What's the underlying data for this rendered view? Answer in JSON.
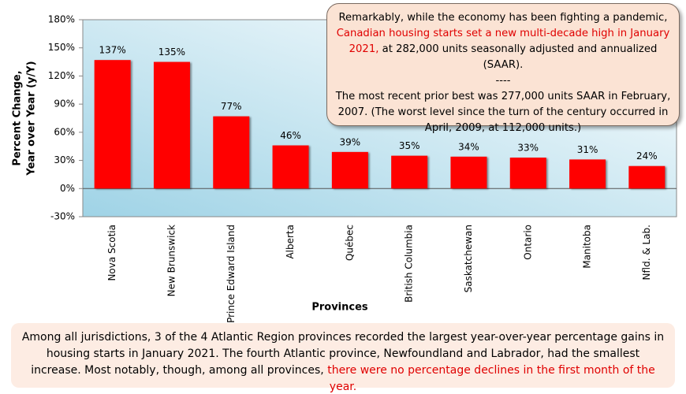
{
  "chart_data": {
    "type": "bar",
    "x_label": "Provinces",
    "y_label": [
      "Percent Change,",
      "Year over Year (y/Y)"
    ],
    "categories": [
      "Nova Scotia",
      "New Brunswick",
      "Prince Edward Island",
      "Alberta",
      "Québec",
      "British Columbia",
      "Saskatchewan",
      "Ontario",
      "Manitoba",
      "Nfld. & Lab."
    ],
    "values": [
      137,
      135,
      77,
      46,
      39,
      35,
      34,
      33,
      31,
      24
    ],
    "value_labels": [
      "137%",
      "135%",
      "77%",
      "46%",
      "39%",
      "35%",
      "34%",
      "33%",
      "31%",
      "24%"
    ],
    "color": "#ff0000",
    "ylim": [
      -30,
      180
    ],
    "yticks": [
      {
        "value": -30,
        "label": "-30%"
      },
      {
        "value": 0,
        "label": "0%"
      },
      {
        "value": 30,
        "label": "30%"
      },
      {
        "value": 60,
        "label": "60%"
      },
      {
        "value": 90,
        "label": "90%"
      },
      {
        "value": 120,
        "label": "120%"
      },
      {
        "value": 150,
        "label": "150%"
      },
      {
        "value": 180,
        "label": "180%"
      }
    ],
    "grid": false,
    "annotation": [
      [
        {
          "text": "Remarkably, while the economy has been fighting a pandemic,",
          "color": "#000000"
        },
        {
          "text": "Canadian housing starts set a new multi-decade high in January 2021,",
          "color": "#e00000"
        },
        {
          "text": "at 282,000 units seasonally adjusted and annualized (SAAR).",
          "color": "#000000"
        }
      ],
      [
        {
          "text": "----",
          "color": "#000000"
        }
      ],
      [
        {
          "text": "The most recent prior best was 277,000 units SAAR in February, 2007. (The worst level since the turn of the century occurred in April, 2009, at 112,000 units.)",
          "color": "#000000"
        }
      ]
    ],
    "caption": [
      [
        {
          "text": "Among all jurisdictions, 3 of the 4 Atlantic Region provinces recorded the largest year-over-year percentage gains in housing starts in January 2021. The fourth Atlantic province, Newfoundland and Labrador, had the smallest increase. Most notably, though, among all provinces,",
          "color": "#000000"
        },
        {
          "text": "there were no percentage declines in the first month of the year.",
          "color": "#e00000"
        }
      ]
    ]
  }
}
